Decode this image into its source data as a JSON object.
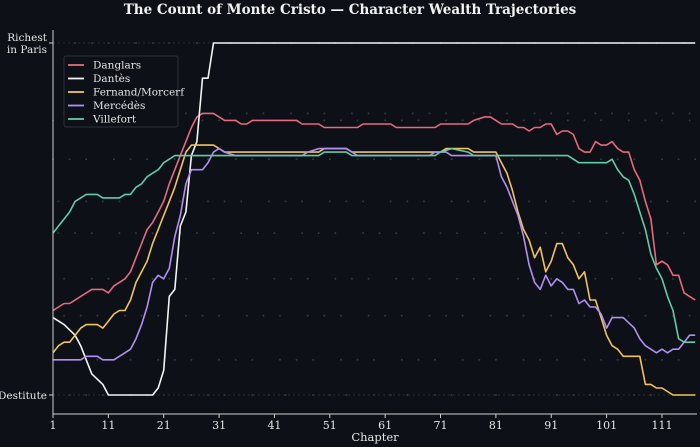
{
  "chart_data": {
    "type": "line",
    "title": "The Count of Monte Cristo — Character Wealth Trajectories",
    "xlabel": "Chapter",
    "ylabel": "",
    "xlim": [
      1,
      117
    ],
    "ylim": [
      0,
      100
    ],
    "x_ticks": [
      1,
      11,
      21,
      31,
      41,
      51,
      61,
      71,
      81,
      91,
      101,
      111
    ],
    "y_ticks": [
      {
        "value": 0,
        "label": "Destitute"
      },
      {
        "value": 100,
        "label": "Richest\nin Paris"
      }
    ],
    "grid": false,
    "legend_position": "upper left",
    "background": "#0d1017",
    "series": [
      {
        "name": "Danglars",
        "color": "#e8697f",
        "points": [
          [
            1,
            24
          ],
          [
            3,
            26
          ],
          [
            4,
            26
          ],
          [
            6,
            28
          ],
          [
            8,
            30
          ],
          [
            10,
            30
          ],
          [
            11,
            29
          ],
          [
            12,
            31
          ],
          [
            14,
            33
          ],
          [
            15,
            35
          ],
          [
            16,
            39
          ],
          [
            17,
            43
          ],
          [
            18,
            47
          ],
          [
            19,
            49
          ],
          [
            20,
            52
          ],
          [
            21,
            55
          ],
          [
            22,
            60
          ],
          [
            23,
            64
          ],
          [
            24,
            68
          ],
          [
            25,
            72
          ],
          [
            26,
            76
          ],
          [
            27,
            79
          ],
          [
            28,
            80
          ],
          [
            30,
            80
          ],
          [
            31,
            79
          ],
          [
            32,
            78
          ],
          [
            34,
            78
          ],
          [
            35,
            77
          ],
          [
            36,
            77
          ],
          [
            37,
            78
          ],
          [
            41,
            78
          ],
          [
            45,
            78
          ],
          [
            46,
            77
          ],
          [
            49,
            77
          ],
          [
            50,
            76
          ],
          [
            51,
            76
          ],
          [
            56,
            76
          ],
          [
            57,
            77
          ],
          [
            62,
            77
          ],
          [
            63,
            76
          ],
          [
            64,
            76
          ],
          [
            70,
            76
          ],
          [
            71,
            77
          ],
          [
            76,
            77
          ],
          [
            77,
            78
          ],
          [
            79,
            79
          ],
          [
            80,
            79
          ],
          [
            81,
            78
          ],
          [
            82,
            77
          ],
          [
            84,
            77
          ],
          [
            85,
            76
          ],
          [
            86,
            76
          ],
          [
            87,
            75
          ],
          [
            88,
            76
          ],
          [
            89,
            76
          ],
          [
            90,
            77
          ],
          [
            91,
            77
          ],
          [
            92,
            74
          ],
          [
            93,
            75
          ],
          [
            94,
            75
          ],
          [
            95,
            74
          ],
          [
            96,
            70
          ],
          [
            97,
            69
          ],
          [
            98,
            69
          ],
          [
            99,
            72
          ],
          [
            100,
            71
          ],
          [
            101,
            71
          ],
          [
            102,
            72
          ],
          [
            103,
            70
          ],
          [
            104,
            69
          ],
          [
            105,
            69
          ],
          [
            106,
            64
          ],
          [
            107,
            61
          ],
          [
            108,
            55
          ],
          [
            109,
            50
          ],
          [
            110,
            37
          ],
          [
            111,
            38
          ],
          [
            112,
            37
          ],
          [
            113,
            34
          ],
          [
            114,
            34
          ],
          [
            115,
            29
          ],
          [
            116,
            28
          ],
          [
            117,
            27
          ]
        ]
      },
      {
        "name": "Dantès",
        "color": "#f4f4f4",
        "points": [
          [
            1,
            22
          ],
          [
            3,
            20
          ],
          [
            5,
            17
          ],
          [
            6,
            14
          ],
          [
            7,
            10
          ],
          [
            8,
            6
          ],
          [
            10,
            3
          ],
          [
            11,
            0
          ],
          [
            13,
            0
          ],
          [
            19,
            0
          ],
          [
            20,
            2
          ],
          [
            21,
            7
          ],
          [
            22,
            28
          ],
          [
            23,
            30
          ],
          [
            24,
            48
          ],
          [
            25,
            52
          ],
          [
            26,
            68
          ],
          [
            27,
            72
          ],
          [
            28,
            90
          ],
          [
            29,
            90
          ],
          [
            30,
            100
          ],
          [
            117,
            100
          ]
        ]
      },
      {
        "name": "Fernand/Morcerf",
        "color": "#f2c35a",
        "points": [
          [
            1,
            12
          ],
          [
            2,
            14
          ],
          [
            3,
            15
          ],
          [
            4,
            15
          ],
          [
            5,
            17
          ],
          [
            6,
            19
          ],
          [
            7,
            20
          ],
          [
            8,
            20
          ],
          [
            9,
            20
          ],
          [
            10,
            19
          ],
          [
            11,
            21
          ],
          [
            12,
            23
          ],
          [
            13,
            24
          ],
          [
            14,
            24
          ],
          [
            15,
            27
          ],
          [
            16,
            32
          ],
          [
            17,
            35
          ],
          [
            18,
            38
          ],
          [
            19,
            43
          ],
          [
            20,
            47
          ],
          [
            21,
            51
          ],
          [
            22,
            55
          ],
          [
            23,
            59
          ],
          [
            24,
            64
          ],
          [
            25,
            69
          ],
          [
            26,
            71
          ],
          [
            27,
            71
          ],
          [
            30,
            71
          ],
          [
            31,
            70
          ],
          [
            32,
            69
          ],
          [
            36,
            69
          ],
          [
            40,
            69
          ],
          [
            44,
            69
          ],
          [
            49,
            69
          ],
          [
            50,
            70
          ],
          [
            54,
            70
          ],
          [
            55,
            69
          ],
          [
            60,
            69
          ],
          [
            70,
            69
          ],
          [
            71,
            69
          ],
          [
            72,
            70
          ],
          [
            76,
            70
          ],
          [
            77,
            69
          ],
          [
            80,
            69
          ],
          [
            81,
            69
          ],
          [
            82,
            66
          ],
          [
            83,
            63
          ],
          [
            84,
            58
          ],
          [
            85,
            52
          ],
          [
            86,
            47
          ],
          [
            87,
            44
          ],
          [
            88,
            39
          ],
          [
            89,
            42
          ],
          [
            90,
            35
          ],
          [
            91,
            38
          ],
          [
            92,
            43
          ],
          [
            93,
            43
          ],
          [
            94,
            39
          ],
          [
            95,
            37
          ],
          [
            96,
            33
          ],
          [
            97,
            35
          ],
          [
            98,
            27
          ],
          [
            99,
            27
          ],
          [
            100,
            22
          ],
          [
            101,
            17
          ],
          [
            102,
            14
          ],
          [
            103,
            13
          ],
          [
            104,
            11
          ],
          [
            105,
            11
          ],
          [
            106,
            11
          ],
          [
            107,
            11
          ],
          [
            108,
            3
          ],
          [
            109,
            3
          ],
          [
            110,
            2
          ],
          [
            111,
            2
          ],
          [
            112,
            1
          ],
          [
            113,
            0
          ],
          [
            114,
            0
          ],
          [
            117,
            0
          ]
        ]
      },
      {
        "name": "Mercédès",
        "color": "#b28ff0",
        "points": [
          [
            1,
            10
          ],
          [
            3,
            10
          ],
          [
            6,
            10
          ],
          [
            7,
            11
          ],
          [
            8,
            11
          ],
          [
            9,
            11
          ],
          [
            10,
            10
          ],
          [
            12,
            10
          ],
          [
            14,
            12
          ],
          [
            15,
            13
          ],
          [
            16,
            16
          ],
          [
            17,
            20
          ],
          [
            18,
            25
          ],
          [
            19,
            32
          ],
          [
            20,
            34
          ],
          [
            21,
            33
          ],
          [
            22,
            36
          ],
          [
            23,
            45
          ],
          [
            24,
            51
          ],
          [
            25,
            60
          ],
          [
            26,
            64
          ],
          [
            28,
            64
          ],
          [
            29,
            66
          ],
          [
            30,
            69
          ],
          [
            31,
            70
          ],
          [
            32,
            69
          ],
          [
            34,
            68
          ],
          [
            36,
            68
          ],
          [
            40,
            68
          ],
          [
            42,
            68
          ],
          [
            44,
            68
          ],
          [
            46,
            68
          ],
          [
            47,
            69
          ],
          [
            49,
            70
          ],
          [
            54,
            70
          ],
          [
            55,
            69
          ],
          [
            56,
            68
          ],
          [
            59,
            68
          ],
          [
            64,
            68
          ],
          [
            68,
            68
          ],
          [
            69,
            68
          ],
          [
            70,
            69
          ],
          [
            72,
            69
          ],
          [
            73,
            68
          ],
          [
            81,
            68
          ],
          [
            82,
            62
          ],
          [
            83,
            59
          ],
          [
            84,
            55
          ],
          [
            85,
            51
          ],
          [
            86,
            45
          ],
          [
            87,
            37
          ],
          [
            88,
            32
          ],
          [
            89,
            30
          ],
          [
            90,
            34
          ],
          [
            91,
            31
          ],
          [
            92,
            33
          ],
          [
            93,
            32
          ],
          [
            94,
            30
          ],
          [
            95,
            30
          ],
          [
            96,
            26
          ],
          [
            97,
            27
          ],
          [
            98,
            25
          ],
          [
            99,
            25
          ],
          [
            100,
            23
          ],
          [
            101,
            19
          ],
          [
            102,
            22
          ],
          [
            103,
            22
          ],
          [
            104,
            22
          ],
          [
            106,
            19
          ],
          [
            107,
            16
          ],
          [
            108,
            14
          ],
          [
            109,
            13
          ],
          [
            110,
            12
          ],
          [
            111,
            13
          ],
          [
            112,
            12
          ],
          [
            113,
            13
          ],
          [
            114,
            13
          ],
          [
            115,
            15
          ],
          [
            116,
            17
          ],
          [
            117,
            17
          ]
        ]
      },
      {
        "name": "Villefort",
        "color": "#5fcda6",
        "points": [
          [
            1,
            46
          ],
          [
            2,
            48
          ],
          [
            3,
            50
          ],
          [
            4,
            52
          ],
          [
            5,
            55
          ],
          [
            6,
            56
          ],
          [
            7,
            57
          ],
          [
            8,
            57
          ],
          [
            9,
            57
          ],
          [
            10,
            56
          ],
          [
            11,
            56
          ],
          [
            12,
            56
          ],
          [
            13,
            56
          ],
          [
            14,
            57
          ],
          [
            15,
            57
          ],
          [
            16,
            59
          ],
          [
            17,
            60
          ],
          [
            18,
            62
          ],
          [
            19,
            63
          ],
          [
            20,
            64
          ],
          [
            21,
            66
          ],
          [
            22,
            67
          ],
          [
            23,
            68
          ],
          [
            30,
            68
          ],
          [
            49,
            68
          ],
          [
            50,
            69
          ],
          [
            54,
            69
          ],
          [
            55,
            68
          ],
          [
            70,
            68
          ],
          [
            71,
            69
          ],
          [
            73,
            70
          ],
          [
            76,
            69
          ],
          [
            77,
            68
          ],
          [
            94,
            68
          ],
          [
            95,
            67
          ],
          [
            96,
            66
          ],
          [
            100,
            66
          ],
          [
            101,
            66
          ],
          [
            102,
            67
          ],
          [
            103,
            64
          ],
          [
            104,
            62
          ],
          [
            105,
            61
          ],
          [
            106,
            57
          ],
          [
            107,
            52
          ],
          [
            108,
            47
          ],
          [
            109,
            40
          ],
          [
            110,
            36
          ],
          [
            111,
            33
          ],
          [
            112,
            28
          ],
          [
            113,
            24
          ],
          [
            114,
            16
          ],
          [
            115,
            15
          ],
          [
            117,
            15
          ]
        ]
      }
    ],
    "scatter_hints": "faint dotted marker rows at discrete wealth levels behind lines"
  }
}
